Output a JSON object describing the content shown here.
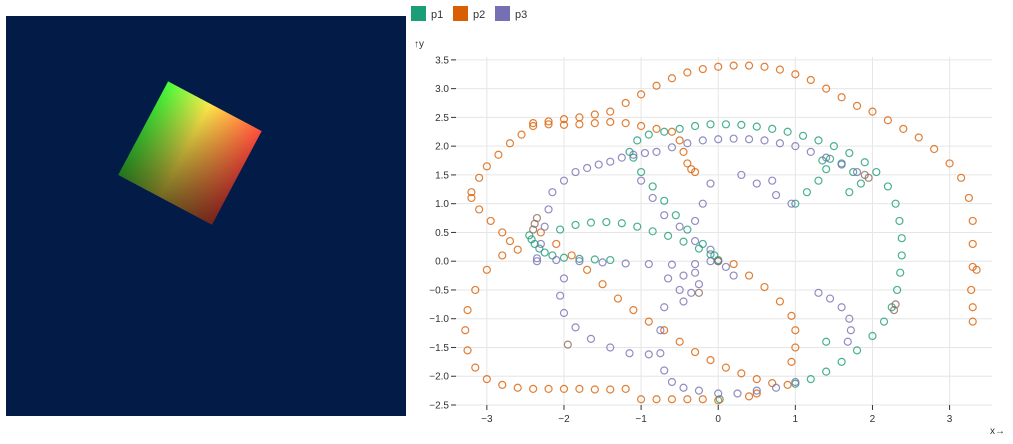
{
  "chart_data": {
    "type": "scatter",
    "title": "",
    "xlabel": "x→",
    "ylabel": "↑y",
    "xlim": [
      -3.4,
      3.55
    ],
    "ylim": [
      -2.5,
      3.55
    ],
    "x_ticks": [
      "−3",
      "−2",
      "−1",
      "0",
      "1",
      "2",
      "3"
    ],
    "y_ticks": [
      "−2.5",
      "−2.0",
      "−1.5",
      "−1.0",
      "−0.5",
      "0.0",
      "0.5",
      "1.0",
      "1.5",
      "2.0",
      "2.5",
      "3.0",
      "3.5"
    ],
    "grid": true,
    "legend_position": "top-left",
    "series": [
      {
        "name": "p1",
        "color": "#1b9e77",
        "points": [
          [
            -2.45,
            0.45
          ],
          [
            -2.42,
            0.38
          ],
          [
            -2.38,
            0.3
          ],
          [
            -2.32,
            0.22
          ],
          [
            -2.25,
            0.15
          ],
          [
            -2.15,
            0.1
          ],
          [
            -2.0,
            0.06
          ],
          [
            -1.8,
            0.04
          ],
          [
            -1.6,
            0.03
          ],
          [
            -1.4,
            0.02
          ],
          [
            -2.05,
            0.55
          ],
          [
            -1.85,
            0.63
          ],
          [
            -1.65,
            0.67
          ],
          [
            -1.45,
            0.68
          ],
          [
            -1.25,
            0.66
          ],
          [
            -1.05,
            0.6
          ],
          [
            -0.85,
            0.52
          ],
          [
            -0.65,
            0.44
          ],
          [
            -0.45,
            0.34
          ],
          [
            -0.25,
            0.22
          ],
          [
            -0.1,
            0.12
          ],
          [
            0.0,
            0.02
          ],
          [
            -1.15,
            1.9
          ],
          [
            -1.05,
            2.1
          ],
          [
            -0.9,
            2.2
          ],
          [
            -0.7,
            2.25
          ],
          [
            -0.5,
            2.3
          ],
          [
            -0.3,
            2.35
          ],
          [
            -0.1,
            2.38
          ],
          [
            0.1,
            2.38
          ],
          [
            0.3,
            2.37
          ],
          [
            0.5,
            2.34
          ],
          [
            0.7,
            2.3
          ],
          [
            0.9,
            2.25
          ],
          [
            1.1,
            2.18
          ],
          [
            1.3,
            2.1
          ],
          [
            1.5,
            2.0
          ],
          [
            1.7,
            1.88
          ],
          [
            1.9,
            1.72
          ],
          [
            2.05,
            1.55
          ],
          [
            2.2,
            1.3
          ],
          [
            2.3,
            1.0
          ],
          [
            2.35,
            0.7
          ],
          [
            2.38,
            0.4
          ],
          [
            2.38,
            0.1
          ],
          [
            2.36,
            -0.2
          ],
          [
            2.32,
            -0.5
          ],
          [
            2.25,
            -0.8
          ],
          [
            2.15,
            -1.05
          ],
          [
            2.0,
            -1.3
          ],
          [
            1.8,
            -1.55
          ],
          [
            1.6,
            -1.75
          ],
          [
            1.4,
            -1.92
          ],
          [
            1.2,
            -2.05
          ],
          [
            1.0,
            -2.13
          ],
          [
            1.35,
            1.75
          ],
          [
            1.4,
            1.6
          ],
          [
            1.3,
            1.4
          ],
          [
            1.15,
            1.2
          ],
          [
            1.0,
            1.0
          ],
          [
            1.45,
            1.78
          ],
          [
            1.6,
            1.7
          ],
          [
            1.75,
            1.55
          ],
          [
            1.85,
            1.35
          ],
          [
            1.7,
            1.2
          ],
          [
            -1.1,
            1.8
          ],
          [
            -1.0,
            1.55
          ],
          [
            -0.85,
            1.3
          ],
          [
            -0.7,
            1.05
          ],
          [
            -0.55,
            0.8
          ],
          [
            -0.4,
            0.55
          ],
          [
            -0.2,
            0.3
          ],
          [
            -0.05,
            0.1
          ],
          [
            1.4,
            -1.4
          ],
          [
            0.02,
            -2.4
          ]
        ]
      },
      {
        "name": "p2",
        "color": "#d95f02",
        "points": [
          [
            -3.2,
            1.2
          ],
          [
            -3.1,
            1.45
          ],
          [
            -3.0,
            1.65
          ],
          [
            -2.85,
            1.85
          ],
          [
            -2.7,
            2.05
          ],
          [
            -2.55,
            2.2
          ],
          [
            -2.4,
            2.35
          ],
          [
            -2.2,
            2.43
          ],
          [
            -2.0,
            2.47
          ],
          [
            -1.8,
            2.5
          ],
          [
            -1.6,
            2.55
          ],
          [
            -1.4,
            2.6
          ],
          [
            -1.2,
            2.75
          ],
          [
            -1.0,
            2.9
          ],
          [
            -0.8,
            3.05
          ],
          [
            -0.6,
            3.18
          ],
          [
            -0.4,
            3.28
          ],
          [
            -0.2,
            3.34
          ],
          [
            0.0,
            3.38
          ],
          [
            0.2,
            3.4
          ],
          [
            0.4,
            3.4
          ],
          [
            0.6,
            3.38
          ],
          [
            0.8,
            3.33
          ],
          [
            1.0,
            3.25
          ],
          [
            1.2,
            3.15
          ],
          [
            1.4,
            3.0
          ],
          [
            1.6,
            2.85
          ],
          [
            1.8,
            2.7
          ],
          [
            2.0,
            2.6
          ],
          [
            2.2,
            2.45
          ],
          [
            2.4,
            2.3
          ],
          [
            2.6,
            2.15
          ],
          [
            2.8,
            1.95
          ],
          [
            3.0,
            1.7
          ],
          [
            3.15,
            1.45
          ],
          [
            3.25,
            1.1
          ],
          [
            3.3,
            0.7
          ],
          [
            3.3,
            0.3
          ],
          [
            3.3,
            -0.1
          ],
          [
            3.28,
            -0.5
          ],
          [
            3.3,
            -0.8
          ],
          [
            3.3,
            -1.05
          ],
          [
            -3.2,
            1.1
          ],
          [
            -3.1,
            0.9
          ],
          [
            -2.95,
            0.7
          ],
          [
            -2.8,
            0.5
          ],
          [
            -2.7,
            0.35
          ],
          [
            -2.6,
            0.2
          ],
          [
            -2.8,
            0.1
          ],
          [
            -3.0,
            -0.15
          ],
          [
            -3.15,
            -0.5
          ],
          [
            -3.25,
            -0.85
          ],
          [
            -3.28,
            -1.2
          ],
          [
            -3.25,
            -1.55
          ],
          [
            -3.15,
            -1.85
          ],
          [
            -3.0,
            -2.05
          ],
          [
            -2.8,
            -2.15
          ],
          [
            -2.6,
            -2.2
          ],
          [
            -2.4,
            -2.22
          ],
          [
            -2.2,
            -2.22
          ],
          [
            -2.0,
            -2.22
          ],
          [
            -1.8,
            -2.22
          ],
          [
            -1.6,
            -2.23
          ],
          [
            -1.4,
            -2.23
          ],
          [
            -1.2,
            -2.22
          ],
          [
            -2.4,
            2.4
          ],
          [
            -2.2,
            2.38
          ],
          [
            -2.0,
            2.37
          ],
          [
            -1.8,
            2.38
          ],
          [
            -1.6,
            2.4
          ],
          [
            -1.4,
            2.42
          ],
          [
            -1.2,
            2.4
          ],
          [
            -1.0,
            2.35
          ],
          [
            -0.8,
            2.3
          ],
          [
            -0.6,
            2.25
          ],
          [
            -0.5,
            2.1
          ],
          [
            -0.45,
            1.9
          ],
          [
            -0.4,
            1.7
          ],
          [
            -0.35,
            1.6
          ],
          [
            -0.3,
            1.55
          ],
          [
            -2.3,
            0.5
          ],
          [
            -2.1,
            0.3
          ],
          [
            -1.9,
            0.1
          ],
          [
            -1.7,
            -0.15
          ],
          [
            -1.5,
            -0.4
          ],
          [
            -1.3,
            -0.65
          ],
          [
            -1.1,
            -0.85
          ],
          [
            -0.9,
            -1.05
          ],
          [
            -0.7,
            -1.2
          ],
          [
            -0.5,
            -1.4
          ],
          [
            -0.3,
            -1.58
          ],
          [
            -0.1,
            -1.72
          ],
          [
            0.1,
            -1.85
          ],
          [
            0.3,
            -1.95
          ],
          [
            0.5,
            -2.05
          ],
          [
            0.7,
            -2.12
          ],
          [
            0.9,
            -2.15
          ],
          [
            0.2,
            -0.05
          ],
          [
            0.4,
            -0.25
          ],
          [
            0.6,
            -0.45
          ],
          [
            0.8,
            -0.7
          ],
          [
            0.95,
            -0.95
          ],
          [
            1.0,
            -1.2
          ],
          [
            1.0,
            -1.5
          ],
          [
            0.95,
            -1.75
          ],
          [
            -1.0,
            -2.4
          ],
          [
            -0.8,
            -2.4
          ],
          [
            -0.6,
            -2.4
          ],
          [
            -0.4,
            -2.4
          ],
          [
            -0.2,
            -2.4
          ],
          [
            0.0,
            -2.42
          ],
          [
            0.4,
            -2.35
          ],
          [
            0.5,
            -2.3
          ],
          [
            3.35,
            -0.15
          ]
        ]
      },
      {
        "name": "p3",
        "color": "#7570b3",
        "points": [
          [
            -2.35,
            0.0
          ],
          [
            -2.3,
            0.3
          ],
          [
            -2.25,
            0.6
          ],
          [
            -2.2,
            0.9
          ],
          [
            -2.15,
            1.2
          ],
          [
            -2.0,
            1.4
          ],
          [
            -1.85,
            1.55
          ],
          [
            -1.7,
            1.62
          ],
          [
            -1.55,
            1.68
          ],
          [
            -1.4,
            1.73
          ],
          [
            -1.25,
            1.8
          ],
          [
            -1.1,
            1.85
          ],
          [
            -0.95,
            1.88
          ],
          [
            -0.8,
            1.9
          ],
          [
            -0.6,
            1.98
          ],
          [
            -0.4,
            2.05
          ],
          [
            -0.2,
            2.1
          ],
          [
            0.0,
            2.12
          ],
          [
            0.2,
            2.13
          ],
          [
            0.4,
            2.12
          ],
          [
            0.6,
            2.1
          ],
          [
            0.8,
            2.05
          ],
          [
            1.0,
            2.0
          ],
          [
            1.2,
            1.9
          ],
          [
            1.4,
            1.8
          ],
          [
            1.6,
            1.68
          ],
          [
            1.8,
            1.55
          ],
          [
            -2.35,
            0.05
          ],
          [
            -2.1,
            0.02
          ],
          [
            -1.8,
            0.0
          ],
          [
            -1.5,
            -0.02
          ],
          [
            -1.2,
            -0.04
          ],
          [
            -0.9,
            -0.05
          ],
          [
            -0.6,
            -0.06
          ],
          [
            -0.3,
            -0.05
          ],
          [
            0.0,
            0.0
          ],
          [
            -2.0,
            -0.3
          ],
          [
            -2.05,
            -0.6
          ],
          [
            -2.0,
            -0.9
          ],
          [
            -1.85,
            -1.15
          ],
          [
            -1.65,
            -1.35
          ],
          [
            -1.4,
            -1.5
          ],
          [
            -1.15,
            -1.6
          ],
          [
            -0.9,
            -1.62
          ],
          [
            -0.7,
            -0.8
          ],
          [
            -0.75,
            -1.2
          ],
          [
            -0.75,
            -1.6
          ],
          [
            -0.7,
            -1.9
          ],
          [
            -0.6,
            -2.1
          ],
          [
            -0.45,
            -2.2
          ],
          [
            -0.25,
            -2.25
          ],
          [
            0.0,
            -2.3
          ],
          [
            0.25,
            -2.3
          ],
          [
            0.5,
            -2.25
          ],
          [
            0.75,
            -2.2
          ],
          [
            1.0,
            -2.1
          ],
          [
            -0.5,
            -0.5
          ],
          [
            -0.3,
            -0.2
          ],
          [
            -0.1,
            0.0
          ],
          [
            0.1,
            -0.1
          ],
          [
            0.2,
            -0.25
          ],
          [
            -1.0,
            1.4
          ],
          [
            -0.85,
            1.1
          ],
          [
            -0.7,
            0.8
          ],
          [
            -0.5,
            0.6
          ],
          [
            -0.3,
            0.35
          ],
          [
            -0.1,
            0.2
          ],
          [
            -0.3,
            0.7
          ],
          [
            -0.2,
            1.0
          ],
          [
            -0.1,
            1.35
          ],
          [
            0.3,
            1.5
          ],
          [
            0.5,
            1.35
          ],
          [
            0.7,
            1.4
          ],
          [
            0.75,
            1.15
          ],
          [
            0.95,
            1.0
          ],
          [
            -0.45,
            -0.7
          ],
          [
            -0.35,
            -0.55
          ],
          [
            -0.25,
            -0.4
          ],
          [
            -0.45,
            -0.25
          ],
          [
            -0.65,
            -0.3
          ],
          [
            1.3,
            -0.55
          ],
          [
            1.45,
            -0.65
          ],
          [
            1.6,
            -0.8
          ],
          [
            1.7,
            -1.0
          ],
          [
            1.72,
            -1.2
          ],
          [
            1.68,
            -1.4
          ]
        ]
      },
      {
        "name": "",
        "color": "#8a6a5c",
        "points": [
          [
            -2.35,
            0.75
          ],
          [
            -2.38,
            0.65
          ],
          [
            -2.4,
            0.55
          ],
          [
            1.95,
            1.45
          ],
          [
            1.9,
            1.5
          ],
          [
            2.3,
            -0.75
          ],
          [
            2.28,
            -0.85
          ],
          [
            -1.95,
            -1.45
          ],
          [
            -0.25,
            -0.55
          ],
          [
            0.0,
            0.0
          ]
        ]
      }
    ]
  }
}
